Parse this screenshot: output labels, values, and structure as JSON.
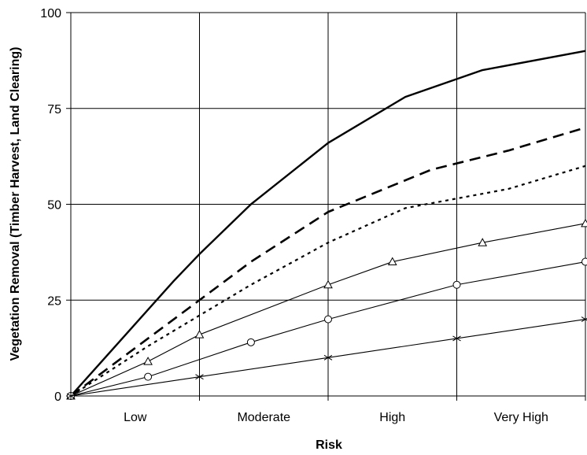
{
  "chart_data": {
    "type": "line",
    "title": "",
    "xlabel": "Risk",
    "ylabel": "Vegetation Removal (Timber Harvest, Land Clearing)",
    "categories": [
      "Low",
      "Moderate",
      "High",
      "Very High"
    ],
    "xlim": [
      0,
      4
    ],
    "ylim": [
      0,
      100
    ],
    "yticks": [
      0,
      25,
      50,
      75,
      100
    ],
    "grid": true,
    "legend": "none",
    "series": [
      {
        "style": "solid-thick",
        "marker": "none",
        "points": [
          [
            0,
            0
          ],
          [
            0.8,
            30
          ],
          [
            1,
            37
          ],
          [
            1.4,
            50
          ],
          [
            2,
            66
          ],
          [
            2.6,
            78
          ],
          [
            3.2,
            85
          ],
          [
            4,
            90
          ]
        ]
      },
      {
        "style": "dashed-thick",
        "marker": "none",
        "points": [
          [
            0,
            0
          ],
          [
            0.6,
            15
          ],
          [
            1,
            25
          ],
          [
            1.4,
            35
          ],
          [
            2,
            48
          ],
          [
            2.8,
            59
          ],
          [
            3.4,
            64
          ],
          [
            4,
            70
          ]
        ]
      },
      {
        "style": "dotted",
        "marker": "none",
        "points": [
          [
            0,
            0
          ],
          [
            0.6,
            13
          ],
          [
            1,
            21
          ],
          [
            1.4,
            29
          ],
          [
            2,
            40
          ],
          [
            2.6,
            49
          ],
          [
            3.4,
            54
          ],
          [
            4,
            60
          ]
        ]
      },
      {
        "style": "solid-thin",
        "marker": "triangle",
        "points": [
          [
            0,
            0
          ],
          [
            0.6,
            9
          ],
          [
            1,
            16
          ],
          [
            2,
            29
          ],
          [
            2.5,
            35
          ],
          [
            3.2,
            40
          ],
          [
            4,
            45
          ]
        ]
      },
      {
        "style": "solid-thin",
        "marker": "circle",
        "points": [
          [
            0,
            0
          ],
          [
            0.6,
            5
          ],
          [
            1.4,
            14
          ],
          [
            2,
            20
          ],
          [
            3,
            29
          ],
          [
            4,
            35
          ]
        ]
      },
      {
        "style": "solid-thin",
        "marker": "star",
        "points": [
          [
            0,
            0
          ],
          [
            1,
            5
          ],
          [
            2,
            10
          ],
          [
            3,
            15
          ],
          [
            4,
            20
          ]
        ]
      }
    ]
  },
  "colors": {
    "line": "#000000",
    "grid": "#000000",
    "background": "#ffffff"
  }
}
